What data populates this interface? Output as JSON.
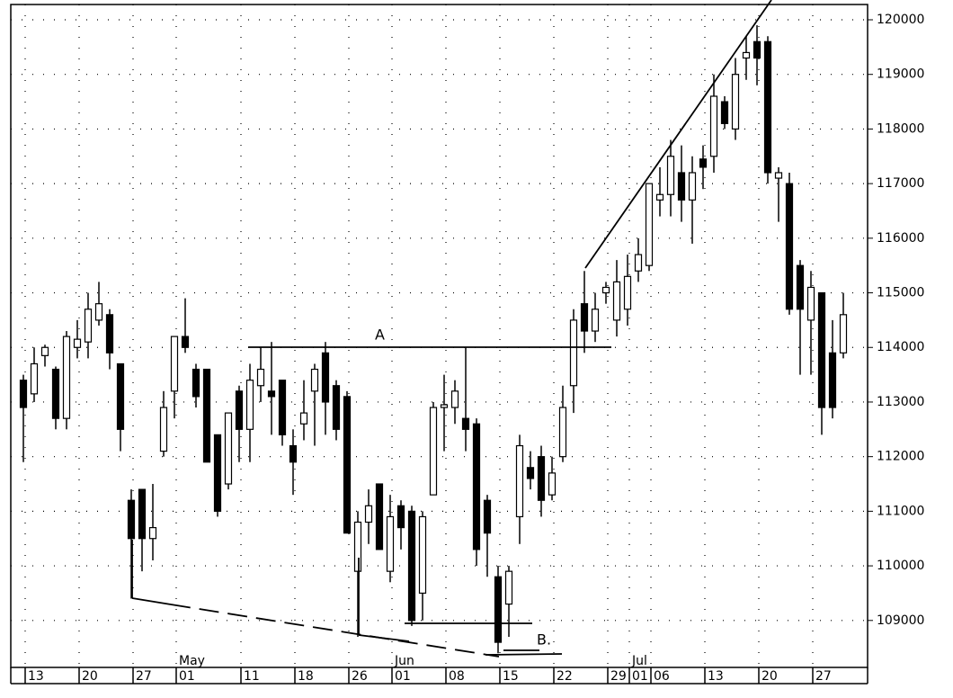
{
  "chart_data": {
    "type": "candlestick",
    "categories": [
      "13",
      null,
      null,
      null,
      null,
      "20",
      null,
      null,
      null,
      null,
      "27",
      null,
      null,
      null,
      "01",
      null,
      null,
      null,
      null,
      null,
      "11",
      null,
      null,
      null,
      null,
      "18",
      null,
      null,
      null,
      null,
      "26",
      null,
      null,
      null,
      "01",
      null,
      null,
      null,
      null,
      "08",
      null,
      null,
      null,
      null,
      "15",
      null,
      null,
      null,
      null,
      "22",
      null,
      null,
      null,
      null,
      "29",
      null,
      "01",
      null,
      "06",
      null,
      null,
      null,
      null,
      "13",
      null,
      null,
      null,
      null,
      "20",
      null,
      null,
      null,
      null,
      "27",
      null,
      null,
      null
    ],
    "months": [
      {
        "label": "May",
        "category": 14
      },
      {
        "label": "Jun",
        "category": 34
      },
      {
        "label": "Jul",
        "category": 56
      }
    ],
    "open": [
      113400,
      113150,
      113850,
      113600,
      112700,
      114000,
      114100,
      114500,
      114600,
      113700,
      111200,
      111400,
      110500,
      112100,
      113200,
      114200,
      113600,
      113600,
      112400,
      111500,
      113200,
      112500,
      113300,
      113200,
      113400,
      112200,
      112600,
      113200,
      113900,
      113300,
      113100,
      109900,
      110800,
      111500,
      109900,
      111100,
      111000,
      109500,
      111300,
      112900,
      112900,
      112700,
      112600,
      111200,
      109800,
      109300,
      110900,
      111800,
      112000,
      111300,
      112000,
      113300,
      114800,
      114300,
      115000,
      114500,
      114700,
      115400,
      115500,
      116700,
      116800,
      117200,
      116700,
      117450,
      117500,
      118500,
      118000,
      119300,
      119600,
      119600,
      117100,
      117000,
      115500,
      114500,
      115000,
      113900,
      113900
    ],
    "high": [
      113500,
      114000,
      114050,
      113650,
      114300,
      114500,
      115000,
      115200,
      114700,
      113700,
      111400,
      111400,
      111500,
      113200,
      114200,
      114900,
      113700,
      113600,
      112400,
      112800,
      113300,
      113700,
      114000,
      114100,
      113400,
      112500,
      113400,
      113700,
      114100,
      113400,
      113200,
      111000,
      111400,
      111500,
      111300,
      111200,
      111100,
      111000,
      113000,
      113500,
      113400,
      114000,
      112700,
      111300,
      110000,
      110000,
      112400,
      112100,
      112200,
      112000,
      113300,
      114700,
      115400,
      115000,
      115200,
      115600,
      115700,
      116000,
      117000,
      117300,
      117800,
      117700,
      117500,
      117700,
      119000,
      118600,
      119300,
      119700,
      119900,
      119700,
      117300,
      117200,
      115600,
      115400,
      115000,
      114500,
      115000
    ],
    "low": [
      111900,
      113000,
      113650,
      112500,
      112500,
      113800,
      113800,
      114400,
      113600,
      112100,
      109400,
      109900,
      110100,
      112000,
      112700,
      113900,
      112900,
      111900,
      110900,
      111400,
      111900,
      111900,
      113000,
      112400,
      112200,
      111300,
      112300,
      112200,
      112400,
      112300,
      110600,
      108700,
      110400,
      110300,
      109700,
      110300,
      108900,
      109000,
      111300,
      112100,
      112600,
      112100,
      110000,
      109800,
      108400,
      108700,
      110400,
      111400,
      110900,
      111200,
      111900,
      112800,
      113900,
      114100,
      114800,
      114200,
      114400,
      115200,
      115400,
      116400,
      116400,
      116300,
      115900,
      116900,
      117200,
      118000,
      117800,
      118900,
      118800,
      117000,
      116300,
      114600,
      113500,
      113500,
      112400,
      112700,
      113800
    ],
    "close": [
      112900,
      113700,
      114000,
      112700,
      114200,
      114150,
      114700,
      114800,
      113900,
      112500,
      110500,
      110500,
      110700,
      112900,
      114200,
      114000,
      113100,
      111900,
      111000,
      112800,
      112500,
      113400,
      113600,
      113100,
      112400,
      111900,
      112800,
      113600,
      113000,
      112500,
      110600,
      110800,
      111100,
      110300,
      110900,
      110700,
      109000,
      110900,
      112900,
      112950,
      113200,
      112500,
      110300,
      110600,
      108600,
      109900,
      112200,
      111600,
      111200,
      111700,
      112900,
      114500,
      114300,
      114700,
      115100,
      115200,
      115300,
      115700,
      117000,
      116800,
      117500,
      116700,
      117200,
      117300,
      118600,
      118100,
      119000,
      119400,
      119300,
      117200,
      117200,
      114700,
      114700,
      115100,
      112900,
      112900,
      114600
    ],
    "up_color": "#ffffff",
    "down_color": "#000000",
    "ylim": [
      108140,
      120280
    ],
    "yticks": [
      109000,
      110000,
      111000,
      112000,
      113000,
      114000,
      115000,
      116000,
      117000,
      118000,
      119000,
      120000
    ],
    "grid": true,
    "annotations": [
      "A",
      "B."
    ]
  }
}
